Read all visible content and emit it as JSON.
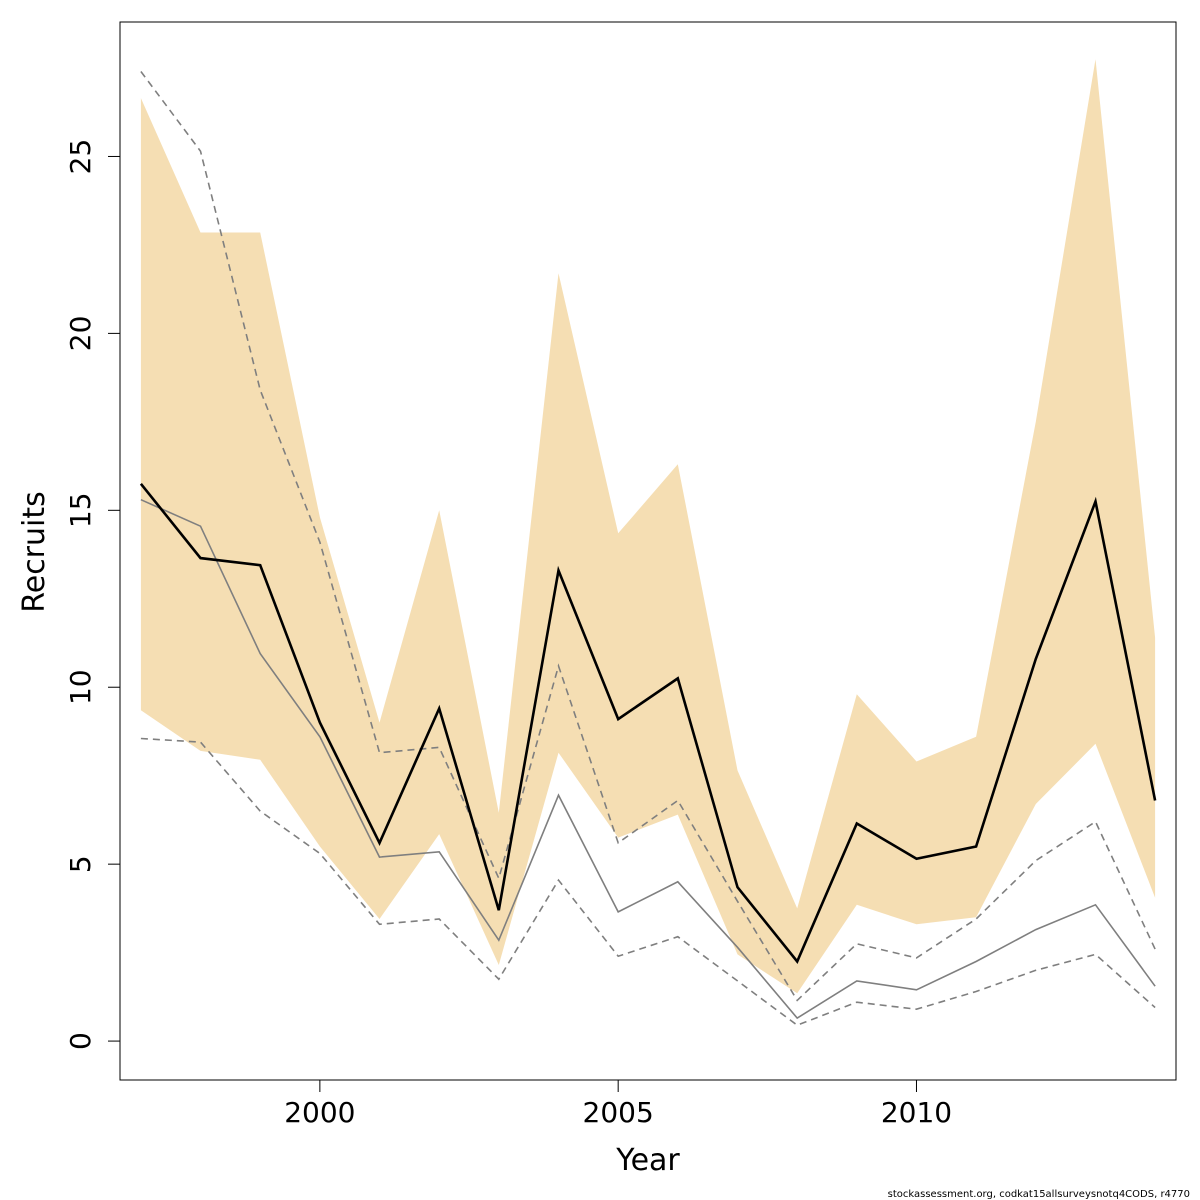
{
  "chart_data": {
    "type": "line",
    "xlabel": "Year",
    "ylabel": "Recruits",
    "xlim": [
      1996.65,
      2014.35
    ],
    "ylim": [
      -1.1,
      28.8
    ],
    "xticks": [
      2000,
      2005,
      2010
    ],
    "yticks": [
      0,
      5,
      10,
      15,
      20,
      25
    ],
    "grid": false,
    "footnote": "stockassessment.org, codkat15allsurveysnotq4CODS, r4770",
    "colors": {
      "band": "#f5deb3",
      "estimate": "#000000",
      "comparison": "#7f7f7f"
    },
    "x": [
      1997,
      1998,
      1999,
      2000,
      2001,
      2002,
      2003,
      2004,
      2005,
      2006,
      2007,
      2008,
      2009,
      2010,
      2011,
      2012,
      2013,
      2014
    ],
    "band": {
      "lower": [
        9.35,
        8.2,
        7.95,
        5.5,
        3.45,
        5.85,
        2.15,
        8.15,
        5.75,
        6.4,
        2.45,
        1.35,
        3.85,
        3.3,
        3.5,
        6.7,
        8.4,
        4.05
      ],
      "upper": [
        26.65,
        22.85,
        22.85,
        14.8,
        9.0,
        15.0,
        6.45,
        21.7,
        14.35,
        16.3,
        7.65,
        3.75,
        9.8,
        7.9,
        8.6,
        17.5,
        27.75,
        11.4
      ]
    },
    "series": [
      {
        "key": "estimate",
        "style": "solid-thick",
        "values": [
          15.75,
          13.65,
          13.45,
          9.0,
          5.6,
          9.4,
          3.7,
          13.3,
          9.1,
          10.25,
          4.35,
          2.25,
          6.15,
          5.15,
          5.5,
          10.8,
          15.25,
          6.8
        ]
      },
      {
        "key": "comparison",
        "style": "solid-thin",
        "values": [
          15.3,
          14.55,
          10.95,
          8.6,
          5.2,
          5.35,
          2.85,
          6.95,
          3.65,
          4.5,
          2.65,
          0.65,
          1.7,
          1.45,
          2.25,
          3.15,
          3.85,
          1.55
        ]
      },
      {
        "key": "comparison-upper",
        "style": "dashed",
        "values": [
          27.4,
          25.15,
          18.4,
          14.1,
          8.15,
          8.3,
          4.6,
          10.6,
          5.6,
          6.8,
          3.95,
          1.15,
          2.75,
          2.35,
          3.45,
          5.1,
          6.2,
          2.6
        ]
      },
      {
        "key": "comparison-lower",
        "style": "dashed",
        "values": [
          8.55,
          8.45,
          6.5,
          5.3,
          3.3,
          3.45,
          1.75,
          4.55,
          2.4,
          2.95,
          1.7,
          0.45,
          1.1,
          0.9,
          1.4,
          2.0,
          2.45,
          0.95
        ]
      }
    ]
  }
}
